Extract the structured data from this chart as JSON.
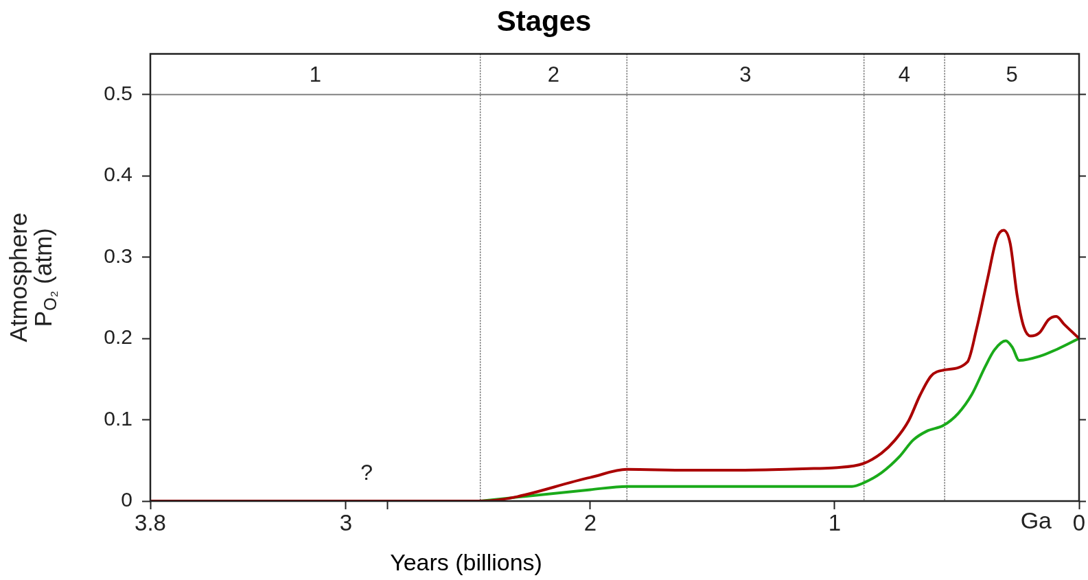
{
  "chart_data": {
    "type": "line",
    "title": "Stages",
    "xlabel": "Years (billions)",
    "ylabel": "Atmosphere\nP$_{O₂}$ (atm)",
    "xlim": [
      3.8,
      0
    ],
    "xticks": [
      3.8,
      3,
      {
        "value": 2.83,
        "label": null
      },
      2,
      1,
      0
    ],
    "ylim": [
      0,
      0.55
    ],
    "yticks": [
      0,
      0.1,
      0.2,
      0.3,
      0.4,
      0.5
    ],
    "grid": false,
    "marker": "none",
    "series": [
      {
        "color": "#aa0000",
        "x": [
          3.8,
          2.45,
          2.0,
          1.85,
          1.6,
          1.4,
          1.2,
          1.085,
          1.0,
          0.884,
          0.808,
          0.753,
          0.697,
          0.651,
          0.605,
          0.555,
          0.457,
          0.42,
          0.374,
          0.337,
          0.309,
          0.282,
          0.254,
          0.226,
          0.199,
          0.162,
          0.125,
          0.093,
          0.06,
          0
        ],
        "values": [
          0,
          0,
          0.029,
          0.039,
          0.038,
          0.038,
          0.039,
          0.04,
          0.041,
          0.046,
          0.059,
          0.075,
          0.099,
          0.13,
          0.154,
          0.161,
          0.171,
          0.211,
          0.274,
          0.323,
          0.333,
          0.317,
          0.254,
          0.214,
          0.203,
          0.207,
          0.223,
          0.227,
          0.217,
          0.2
        ]
      },
      {
        "color": "#1aaa1a",
        "x": [
          2.45,
          2.0,
          1.85,
          1.4,
          1.085,
          0.929,
          0.884,
          0.808,
          0.734,
          0.679,
          0.623,
          0.555,
          0.494,
          0.439,
          0.383,
          0.346,
          0.3,
          0.273,
          0.245,
          0.162,
          0.088,
          0
        ],
        "values": [
          0,
          0.014,
          0.018,
          0.018,
          0.018,
          0.018,
          0.022,
          0.035,
          0.055,
          0.075,
          0.086,
          0.093,
          0.108,
          0.131,
          0.166,
          0.186,
          0.197,
          0.189,
          0.173,
          0.178,
          0.187,
          0.2
        ]
      }
    ],
    "ref_lines": [
      {
        "axis": "y",
        "value": 0.5,
        "color": "#808080"
      },
      {
        "axis": "x",
        "value": 2.45,
        "color": "#555555",
        "line_style": "dotted"
      },
      {
        "axis": "x",
        "value": 1.85,
        "color": "#555555",
        "line_style": "dotted"
      },
      {
        "axis": "x",
        "value": 0.88,
        "color": "#555555",
        "line_style": "dotted"
      },
      {
        "axis": "x",
        "value": 0.55,
        "color": "#555555",
        "line_style": "dotted"
      }
    ],
    "annotations": [
      "1",
      "2",
      "3",
      "4",
      "5",
      "?",
      "Ga"
    ]
  }
}
